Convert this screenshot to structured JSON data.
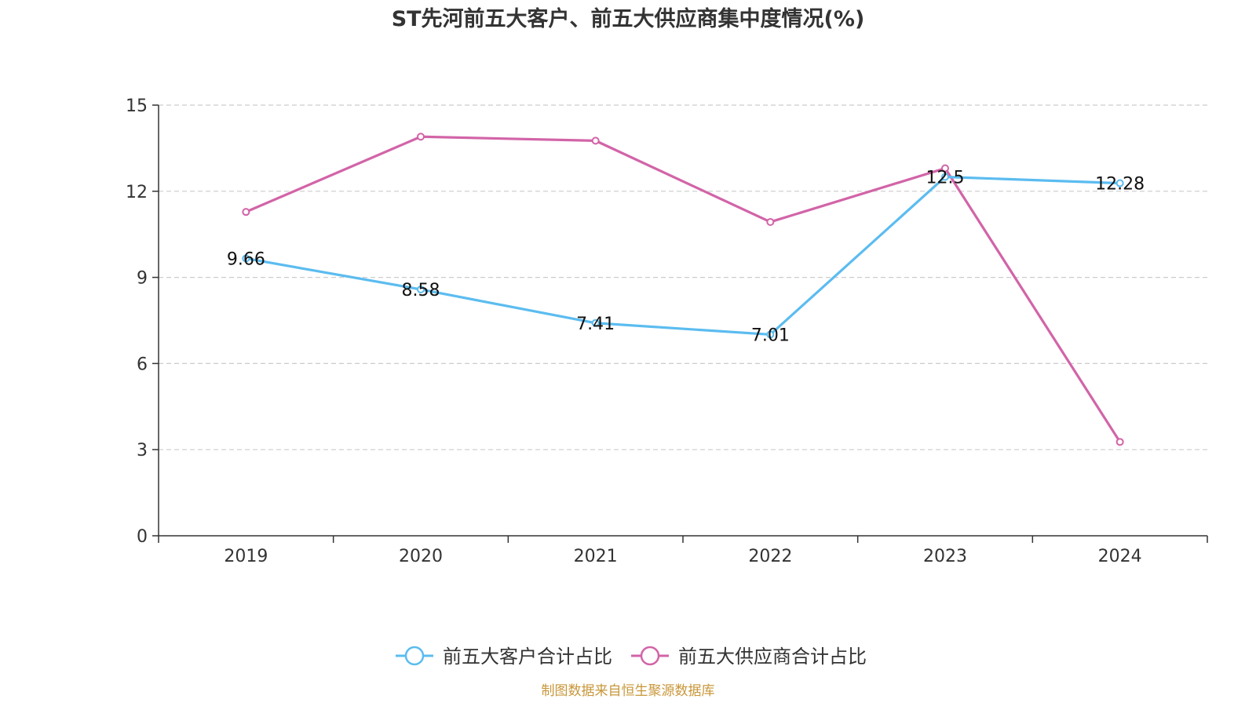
{
  "chart_data": {
    "type": "line",
    "title": "ST先河前五大客户、前五大供应商集中度情况(%)",
    "categories": [
      "2019",
      "2020",
      "2021",
      "2022",
      "2023",
      "2024"
    ],
    "ylim": [
      0,
      15
    ],
    "yticks": [
      0,
      3,
      6,
      9,
      12,
      15
    ],
    "grid": true,
    "legend_position": "bottom-center",
    "series": [
      {
        "name": "前五大客户合计占比",
        "color": "#5bbcf0",
        "values": [
          9.66,
          8.58,
          7.41,
          7.01,
          12.5,
          12.28
        ],
        "labels": [
          "9.66",
          "8.58",
          "7.41",
          "7.01",
          "12.5",
          "12.28"
        ]
      },
      {
        "name": "前五大供应商合计占比",
        "color": "#d264a8",
        "values": [
          11.28,
          13.9,
          13.76,
          10.93,
          12.8,
          3.27
        ],
        "labels": []
      }
    ]
  },
  "source_text": "制图数据来自恒生聚源数据库",
  "colors": {
    "source": "#c8973a",
    "axis": "#333333",
    "grid": "#cccccc"
  }
}
